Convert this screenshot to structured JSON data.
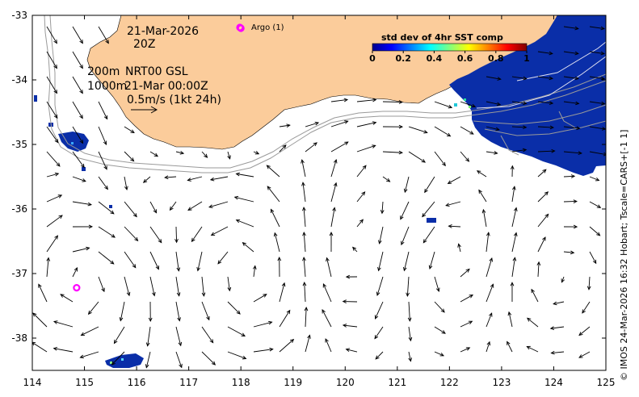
{
  "map": {
    "date": "21-Mar-2026",
    "time": "20Z",
    "depth_line1": "200m",
    "depth_line2": "1000m",
    "product": "NRT00 GSL",
    "product_date": "21-Mar 00:00Z",
    "scale_label": "0.5m/s (1kt 24h)",
    "argo_label": "Argo (1)",
    "credit": "© IMOS 24-Mar-2026 16:32 Hobart; Tscale=CARS+[-1 1]",
    "x_ticks": [
      "114",
      "115",
      "116",
      "117",
      "118",
      "119",
      "120",
      "121",
      "122",
      "123",
      "124",
      "125"
    ],
    "y_ticks": [
      "-33",
      "-34",
      "-35",
      "-36",
      "-37",
      "-38"
    ],
    "lon_range": [
      114,
      125
    ],
    "lat_range": [
      -38.5,
      -33
    ],
    "argo_floats": [
      {
        "lon": 118.0,
        "lat": -33.2
      },
      {
        "lon": 114.85,
        "lat": -37.22
      }
    ]
  },
  "colorbar": {
    "title": "std dev of 4hr SST comp",
    "ticks": [
      "0",
      "0.2",
      "0.4",
      "0.6",
      "0.8",
      "1"
    ],
    "range": [
      0,
      1
    ]
  },
  "colors": {
    "land": "#fbcc9b",
    "sst_patch": "#0a2ea8",
    "argo": "#ff00ff",
    "contour": "#9a9a9a"
  }
}
